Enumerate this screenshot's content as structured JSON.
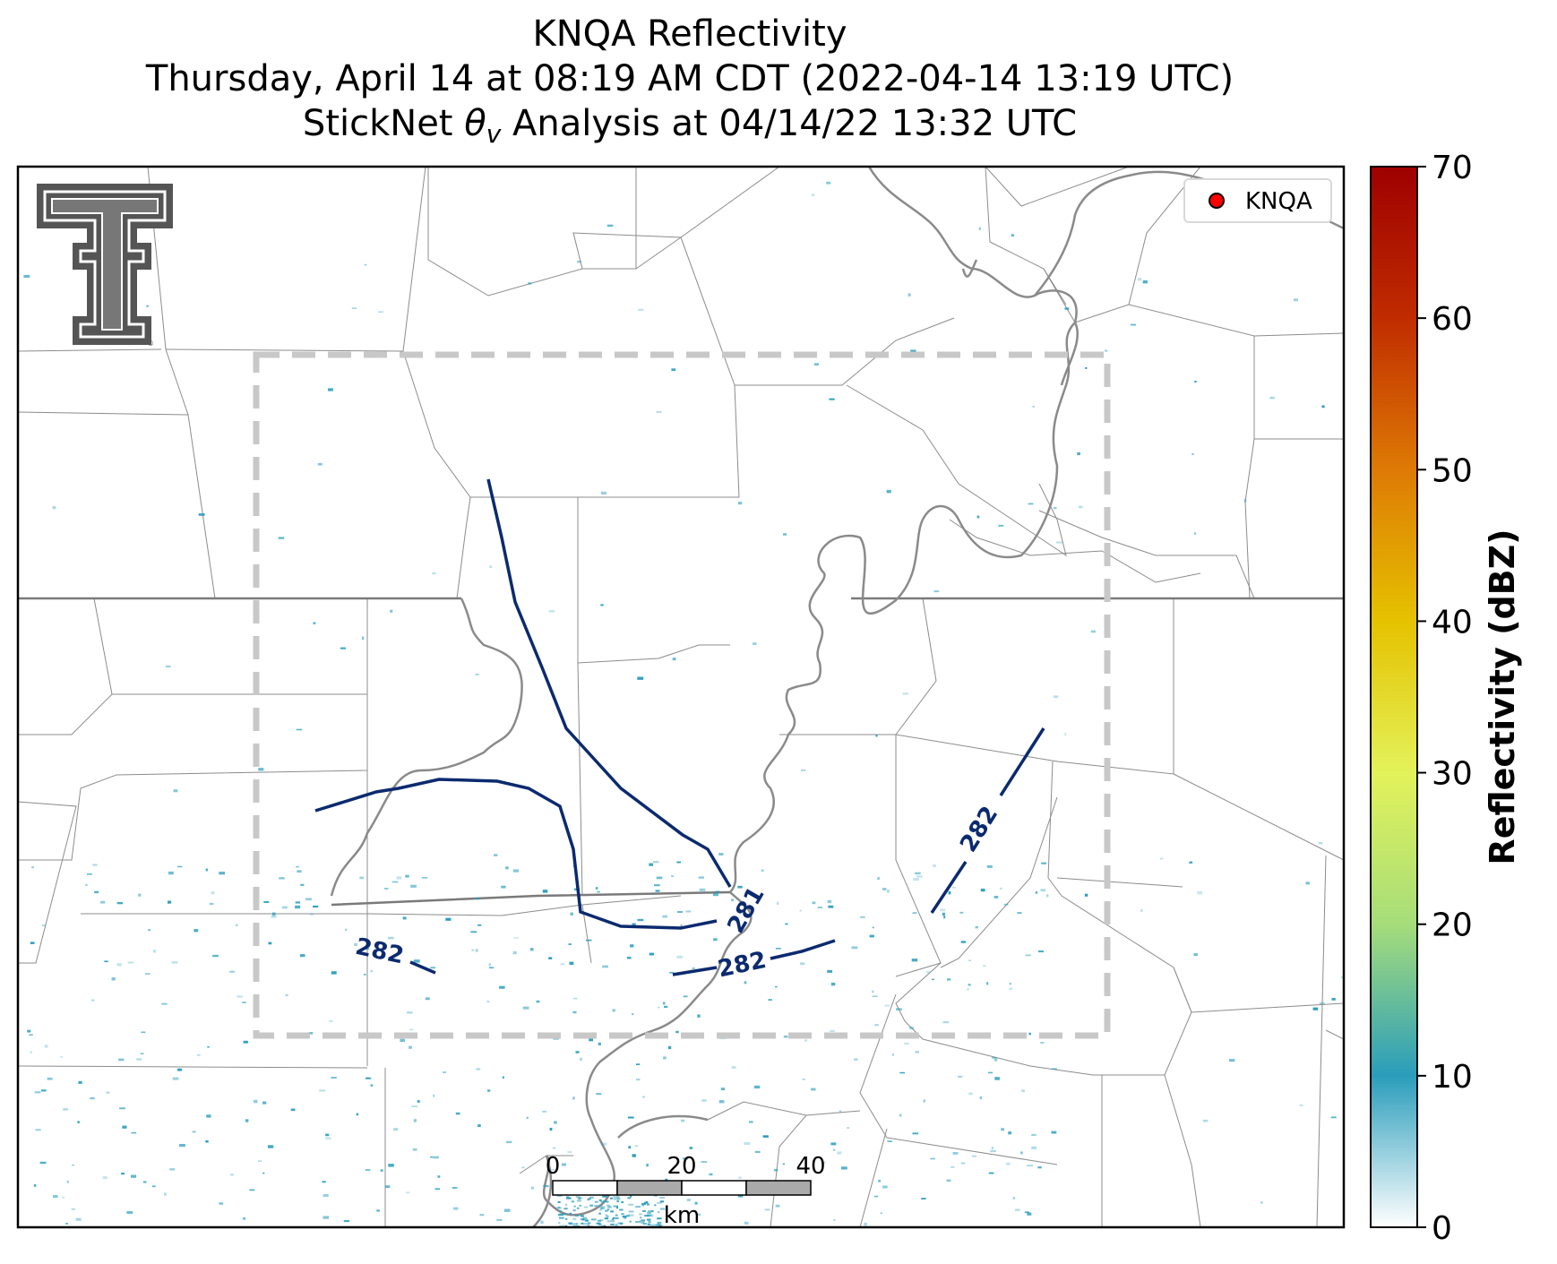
{
  "title": {
    "line1": "KNQA Reflectivity",
    "line2": "Thursday, April 14 at 08:19 AM CDT (2022-04-14 13:19 UTC)",
    "line3_prefix": "StickNet ",
    "line3_symbol": "θ",
    "line3_subscript": "v",
    "line3_suffix": " Analysis at 04/14/22 13:32 UTC"
  },
  "legend": {
    "label": "KNQA",
    "marker_color": "#ff0000"
  },
  "logo": {
    "icon": "texas-tech-double-t-icon",
    "color": "#555555"
  },
  "contour_labels": [
    "281",
    "282",
    "282",
    "282"
  ],
  "colorbar": {
    "label": "Reflectivity (dBZ)",
    "ticks": [
      "0",
      "10",
      "20",
      "30",
      "40",
      "50",
      "60",
      "70"
    ],
    "min": 0,
    "max": 70,
    "colors": [
      "#ffffff",
      "#2a9dbb",
      "#a6dd7a",
      "#e3f25a",
      "#e5c200",
      "#de7a05",
      "#c02c00",
      "#9e0000"
    ]
  },
  "scale_bar": {
    "ticks": [
      "0",
      "20",
      "40"
    ],
    "unit": "km"
  },
  "colors": {
    "contour": "#0b2a6f",
    "domain_box": "#c8c8c8",
    "echo": "#2a9dbb"
  }
}
